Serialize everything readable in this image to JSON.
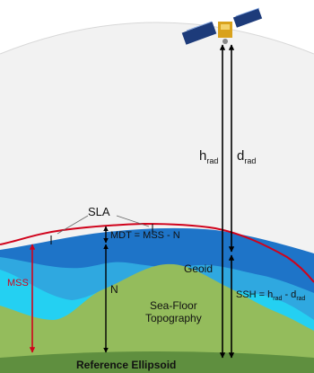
{
  "labels": {
    "h_main": "h",
    "h_sub": "rad",
    "d_main": "d",
    "d_sub": "rad",
    "sla": "SLA",
    "mdt": "MDT = MSS - N",
    "geoid": "Geoid",
    "mss": "MSS",
    "n": "N",
    "ssh_prefix": "SSH = h",
    "ssh_sub1": "rad",
    "ssh_mid": " - d",
    "ssh_sub2": "rad",
    "sea_floor_line1": "Sea-Floor",
    "sea_floor_line2": "Topography",
    "reference_ellipsoid": "Reference Ellipsoid"
  },
  "colors": {
    "sky": "#f2f2f2",
    "deep_water": "#1e74c8",
    "mid_water": "#2fa8e0",
    "shallow_water": "#24d0f2",
    "sea_floor": "#94bc5c",
    "ellipsoid": "#5f8f3f",
    "mss_line": "#d0021b",
    "arrow": "#000000",
    "satellite_body": "#d9a21c",
    "solar_panel": "#1d3b7a"
  },
  "icons": {
    "satellite": "satellite-icon"
  }
}
